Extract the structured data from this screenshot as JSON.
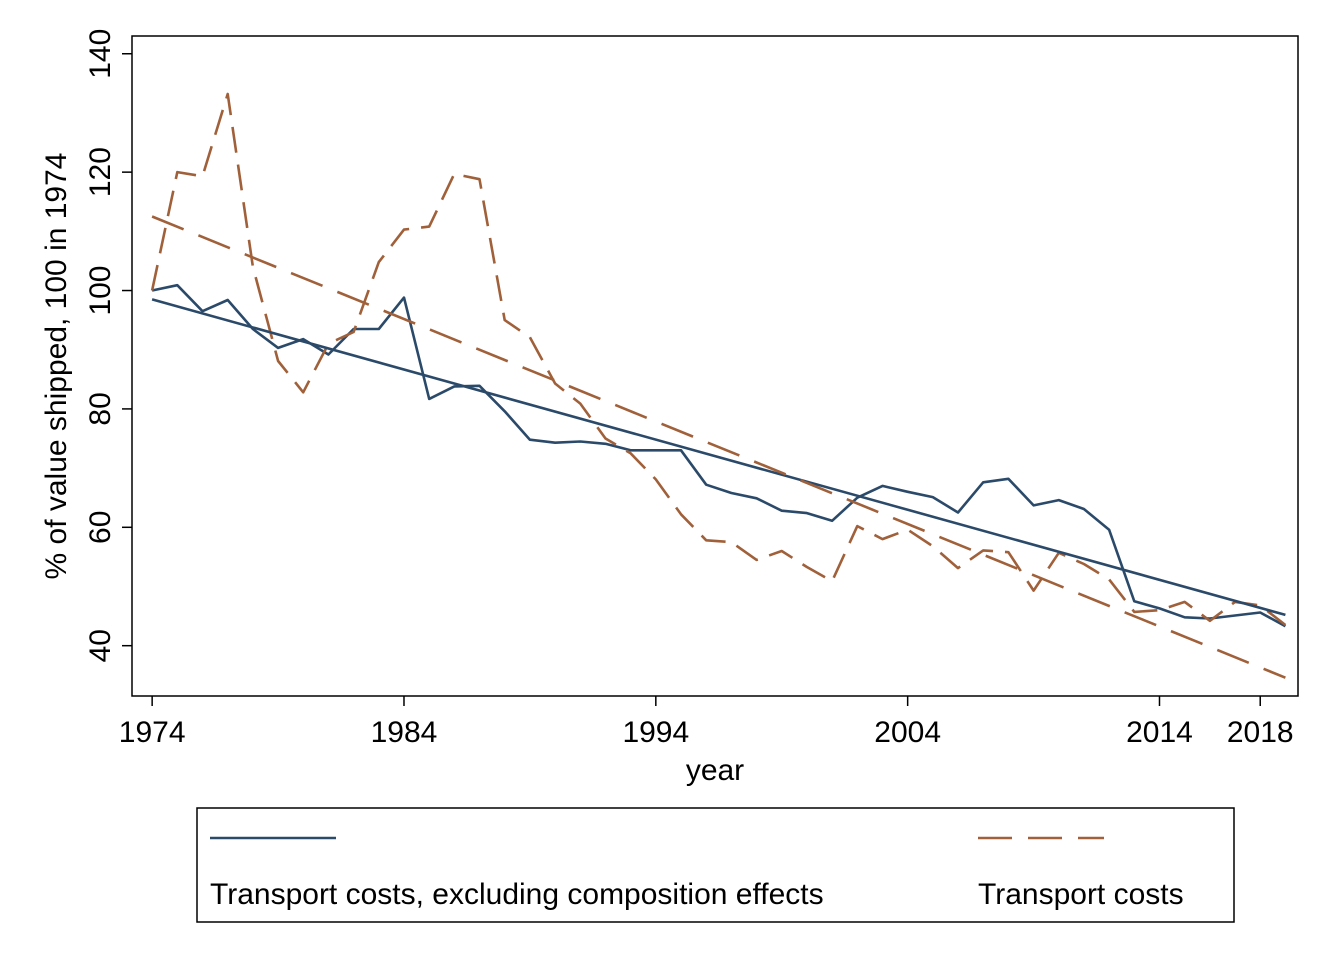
{
  "colors": {
    "navy": "#2b4a6a",
    "brown": "#a0603a",
    "axis": "#000000"
  },
  "chart_data": {
    "type": "line",
    "xlabel": "year",
    "ylabel": "% of value shipped, 100 in 1974",
    "xlim": [
      1973.2,
      2019.5
    ],
    "ylim": [
      31.5,
      143
    ],
    "xticks": [
      1974,
      1984,
      1994,
      2004,
      2014,
      2018
    ],
    "yticks": [
      40,
      60,
      80,
      100,
      120,
      140
    ],
    "grid": false,
    "legend_position": "bottom",
    "x": [
      1974,
      1975,
      1976,
      1977,
      1978,
      1979,
      1980,
      1981,
      1982,
      1983,
      1984,
      1985,
      1986,
      1987,
      1988,
      1989,
      1990,
      1991,
      1992,
      1993,
      1994,
      1995,
      1996,
      1997,
      1998,
      1999,
      2000,
      2001,
      2002,
      2003,
      2004,
      2005,
      2006,
      2007,
      2008,
      2009,
      2010,
      2011,
      2012,
      2013,
      2014,
      2015,
      2016,
      2017,
      2018,
      2019
    ],
    "series": [
      {
        "name": "Transport costs, excluding composition effects",
        "color": "#2b4a6a",
        "dash": "solid",
        "values": [
          100,
          100.9,
          96.5,
          98.4,
          93.5,
          90.3,
          91.8,
          89.2,
          93.5,
          93.5,
          98.8,
          81.7,
          83.8,
          83.9,
          79.6,
          74.8,
          74.3,
          74.5,
          74.1,
          73.0,
          73.0,
          73.0,
          67.2,
          65.8,
          64.9,
          62.8,
          62.4,
          61.1,
          65.0,
          67.0,
          66.0,
          65.1,
          62.5,
          67.6,
          68.2,
          63.7,
          64.6,
          63.1,
          59.6,
          47.5,
          46.3,
          44.8,
          44.6,
          45.1,
          45.6,
          43.3
        ]
      },
      {
        "name": "Transport costs",
        "color": "#a0603a",
        "dash": "dashed",
        "values": [
          100,
          120.0,
          119.3,
          133.2,
          104.0,
          88.1,
          82.8,
          91.0,
          93.0,
          104.8,
          110.3,
          110.8,
          119.7,
          118.8,
          95.0,
          92.1,
          84.3,
          80.9,
          75.0,
          72.5,
          68.1,
          62.2,
          57.8,
          57.5,
          54.5,
          56.0,
          53.3,
          50.9,
          60.2,
          58.0,
          59.6,
          56.8,
          53.1,
          56.1,
          55.8,
          49.3,
          55.7,
          53.8,
          51.2,
          45.7,
          46.0,
          47.4,
          44.2,
          47.4,
          46.8,
          43.5
        ]
      },
      {
        "name": "",
        "color": "#2b4a6a",
        "dash": "solid",
        "role": "linear-fit",
        "x": [
          1974,
          2019
        ],
        "values": [
          98.5,
          45.2
        ]
      },
      {
        "name": "",
        "color": "#a0603a",
        "dash": "longdash",
        "role": "linear-fit",
        "x": [
          1974,
          2019
        ],
        "values": [
          112.5,
          34.6
        ]
      }
    ],
    "legend": [
      {
        "label": "Transport costs, excluding composition effects",
        "color": "#2b4a6a",
        "dash": "solid"
      },
      {
        "label": "Transport costs",
        "color": "#a0603a",
        "dash": "longdash"
      }
    ]
  }
}
